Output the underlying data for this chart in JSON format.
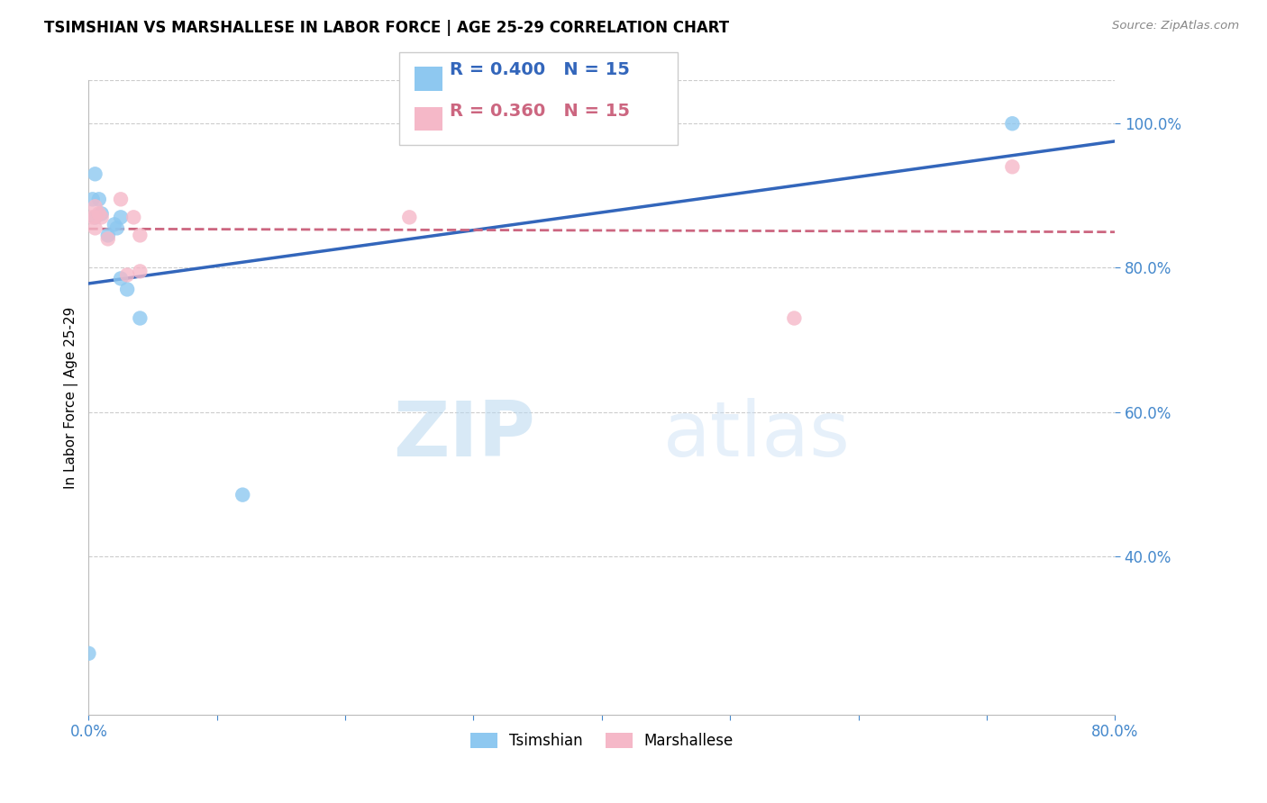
{
  "title": "TSIMSHIAN VS MARSHALLESE IN LABOR FORCE | AGE 25-29 CORRELATION CHART",
  "source": "Source: ZipAtlas.com",
  "ylabel": "In Labor Force | Age 25-29",
  "tsimshian_R": 0.4,
  "tsimshian_N": 15,
  "marshallese_R": 0.36,
  "marshallese_N": 15,
  "tsimshian_color": "#8ec8f0",
  "marshallese_color": "#f5b8c8",
  "tsimshian_line_color": "#3366bb",
  "marshallese_line_color": "#cc6680",
  "axis_label_color": "#4488cc",
  "watermark_zip": "ZIP",
  "watermark_atlas": "atlas",
  "xlim": [
    0.0,
    0.8
  ],
  "ylim": [
    0.18,
    1.06
  ],
  "x_ticks": [
    0.0,
    0.1,
    0.2,
    0.3,
    0.4,
    0.5,
    0.6,
    0.7,
    0.8
  ],
  "x_tick_labels": [
    "0.0%",
    "",
    "",
    "",
    "",
    "",
    "",
    "",
    "80.0%"
  ],
  "y_ticks": [
    0.4,
    0.6,
    0.8,
    1.0
  ],
  "y_tick_labels": [
    "40.0%",
    "60.0%",
    "80.0%",
    "100.0%"
  ],
  "tsimshian_x": [
    0.0,
    0.003,
    0.005,
    0.005,
    0.008,
    0.01,
    0.015,
    0.02,
    0.022,
    0.025,
    0.025,
    0.03,
    0.04,
    0.12,
    0.72
  ],
  "tsimshian_y": [
    0.265,
    0.895,
    0.93,
    0.87,
    0.895,
    0.875,
    0.845,
    0.86,
    0.855,
    0.87,
    0.785,
    0.77,
    0.73,
    0.485,
    1.0
  ],
  "marshallese_x": [
    0.003,
    0.005,
    0.005,
    0.005,
    0.008,
    0.01,
    0.015,
    0.025,
    0.03,
    0.035,
    0.04,
    0.04,
    0.25,
    0.55,
    0.72
  ],
  "marshallese_y": [
    0.87,
    0.885,
    0.87,
    0.855,
    0.875,
    0.87,
    0.84,
    0.895,
    0.79,
    0.87,
    0.845,
    0.795,
    0.87,
    0.73,
    0.94
  ],
  "background_color": "#ffffff",
  "grid_color": "#cccccc",
  "title_fontsize": 12,
  "scatter_size": 140
}
